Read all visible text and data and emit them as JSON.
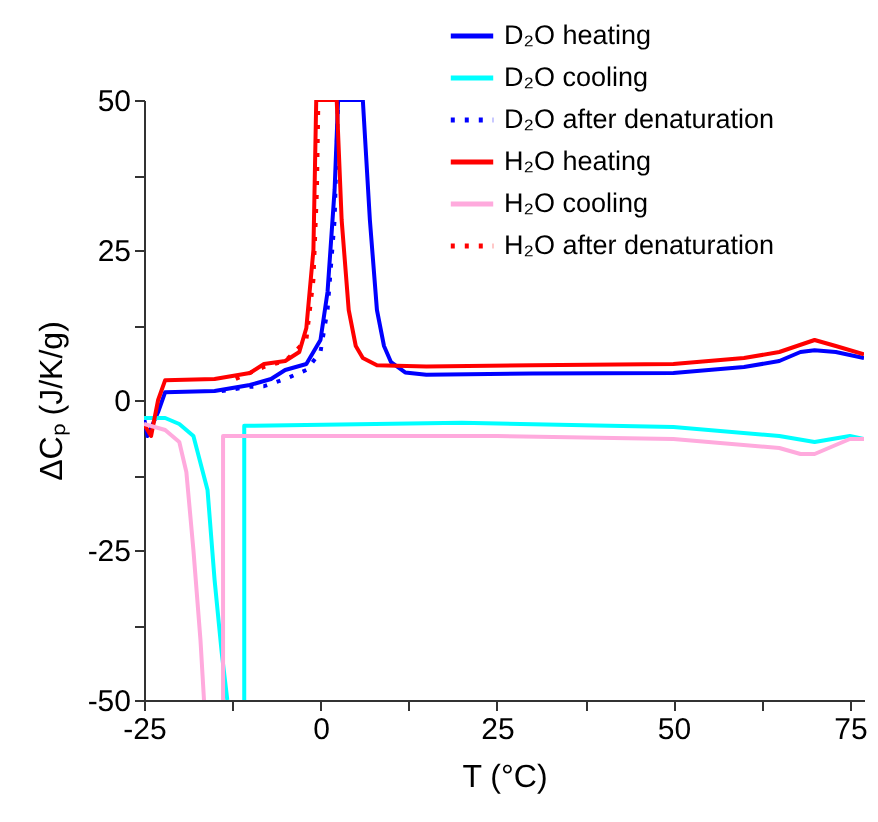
{
  "chart_data": {
    "type": "line",
    "xlabel": "T (°C)",
    "ylabel": "ΔCₚ (J/K/g)",
    "xlim": [
      -25,
      77
    ],
    "ylim": [
      -50,
      50
    ],
    "xticks": [
      -25,
      {
        "value": -12.5,
        "label": null
      },
      0,
      {
        "value": 12.5,
        "label": null
      },
      25,
      {
        "value": 37.5,
        "label": null
      },
      50,
      {
        "value": 62.5,
        "label": null
      },
      75
    ],
    "yticks": [
      -50,
      {
        "value": -37.5,
        "label": null
      },
      -25,
      {
        "value": -12.5,
        "label": null
      },
      0,
      {
        "value": 12.5,
        "label": null
      },
      25,
      {
        "value": 37.5,
        "label": null
      },
      50
    ],
    "grid": false,
    "legend": "top right",
    "marker": "none",
    "series": [
      {
        "name": "D₂O heating",
        "color": "#0000ff",
        "line_style": "solid",
        "x": [
          -25,
          -24.5,
          -23,
          -22,
          -15,
          -10,
          -7,
          -5,
          -2,
          0,
          1,
          2,
          2.5,
          6,
          7,
          8,
          9,
          10,
          12,
          15,
          30,
          50,
          60,
          65,
          68,
          70,
          73,
          77
        ],
        "values": [
          -3,
          -6,
          -2,
          1.3,
          1.5,
          2.5,
          3.5,
          5,
          6,
          10,
          18,
          35,
          50,
          50,
          30,
          15,
          9,
          6.3,
          4.6,
          4.2,
          4.4,
          4.5,
          5.5,
          6.5,
          8,
          8.3,
          8,
          7
        ]
      },
      {
        "name": "D₂O cooling",
        "color": "#00ffff",
        "line_style": "solid",
        "x": [
          -25,
          -22,
          -20,
          -18,
          -16,
          -15,
          -14,
          -13.2,
          -12,
          -10.8,
          -10.8,
          20,
          50,
          65,
          70,
          75,
          77
        ],
        "values": [
          -3,
          -3,
          -4,
          -6,
          -15,
          -30,
          -42,
          -50,
          null,
          -50,
          -4.3,
          -3.8,
          -4.5,
          -6,
          -7,
          -6,
          -6.5
        ]
      },
      {
        "name": "D₂O after denaturation",
        "color": "#0000ff",
        "line_style": "dotted",
        "x": [
          -14,
          -10,
          -8,
          -5,
          -2,
          0,
          1,
          2,
          2.5
        ],
        "values": [
          1.5,
          2.2,
          2.3,
          3.5,
          5,
          8,
          15,
          30,
          50
        ]
      },
      {
        "name": "H₂O heating",
        "color": "#ff0000",
        "line_style": "solid",
        "x": [
          -25,
          -24,
          -23,
          -22,
          -15,
          -10,
          -8,
          -5,
          -3,
          -2,
          -1,
          -0.6,
          2.3,
          3,
          4,
          5,
          6,
          8,
          15,
          30,
          50,
          60,
          65,
          70,
          73,
          77
        ],
        "values": [
          -4,
          -6,
          0,
          3.3,
          3.5,
          4.5,
          6,
          6.5,
          8,
          12,
          25,
          50,
          50,
          30,
          15,
          9,
          7,
          5.8,
          5.6,
          5.8,
          6,
          7,
          8,
          10,
          9,
          7.6
        ]
      },
      {
        "name": "H₂O cooling",
        "color": "#ffaadd",
        "line_style": "solid",
        "x": [
          -25,
          -22,
          -20,
          -19,
          -18,
          -17,
          -16.5,
          -15.5,
          -13.8,
          -13.8,
          0,
          25,
          50,
          65,
          68,
          70,
          75,
          77
        ],
        "values": [
          -4,
          -5,
          -7,
          -12,
          -25,
          -40,
          -50,
          null,
          -50,
          -6,
          -6,
          -6,
          -6.5,
          -8,
          -9,
          -9,
          -6.5,
          -6.5
        ]
      },
      {
        "name": "H₂O after denaturation",
        "color": "#ff0000",
        "line_style": "dotted",
        "x": [
          -12,
          -8,
          -5,
          -2,
          -1,
          -0.5,
          -0.3
        ],
        "values": [
          3.5,
          5.5,
          6.5,
          10,
          20,
          35,
          50
        ]
      }
    ]
  }
}
